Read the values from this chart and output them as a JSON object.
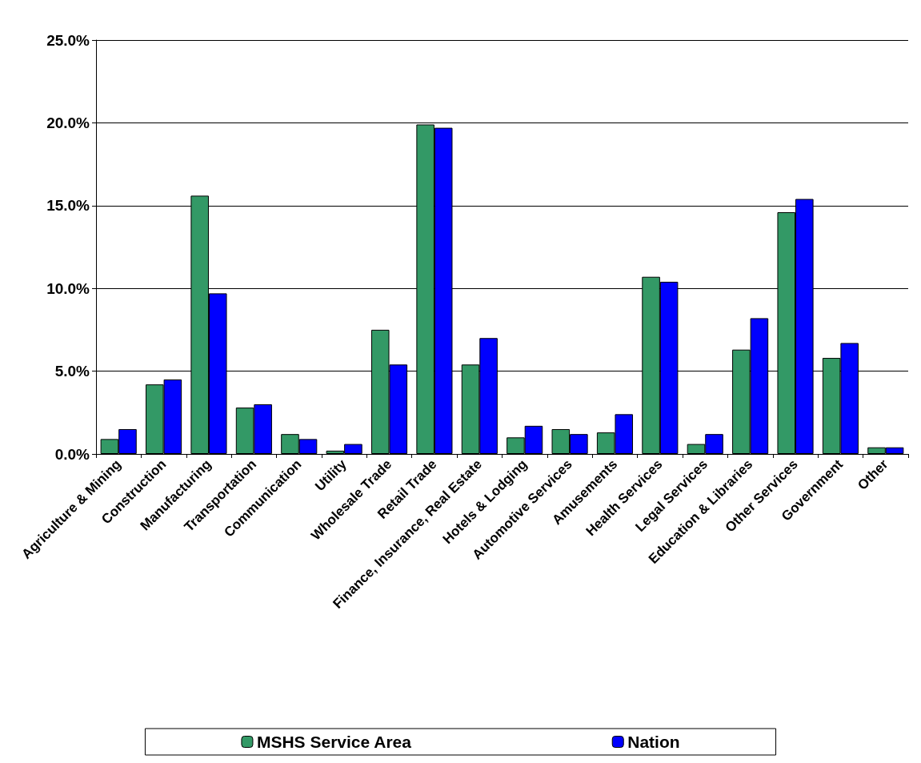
{
  "chart_data": {
    "type": "bar",
    "categories": [
      "Agriculture & Mining",
      "Construction",
      "Manufacturing",
      "Transportation",
      "Communication",
      "Utility",
      "Wholesale Trade",
      "Retail Trade",
      "Finance, Insurance, Real Estate",
      "Hotels & Lodging",
      "Automotive Services",
      "Amusements",
      "Health Services",
      "Legal Services",
      "Education & Libraries",
      "Other Services",
      "Government",
      "Other"
    ],
    "series": [
      {
        "name": "MSHS Service Area",
        "color": "#339966",
        "values": [
          0.9,
          4.2,
          15.6,
          2.8,
          1.2,
          0.2,
          7.5,
          19.9,
          5.4,
          1.0,
          1.5,
          1.3,
          10.7,
          0.6,
          6.3,
          14.6,
          5.8,
          0.4
        ]
      },
      {
        "name": "Nation",
        "color": "#0000ff",
        "values": [
          1.5,
          4.5,
          9.7,
          3.0,
          0.9,
          0.6,
          5.4,
          19.7,
          7.0,
          1.7,
          1.2,
          2.4,
          10.4,
          1.2,
          8.2,
          15.4,
          6.7,
          0.4
        ]
      }
    ],
    "ylim": [
      0,
      25
    ],
    "yticks": [
      {
        "value": 0,
        "label": "0.0%"
      },
      {
        "value": 5,
        "label": "5.0%"
      },
      {
        "value": 10,
        "label": "10.0%"
      },
      {
        "value": 15,
        "label": "15.0%"
      },
      {
        "value": 20,
        "label": "20.0%"
      },
      {
        "value": 25,
        "label": "25.0%"
      }
    ],
    "grid": "y",
    "legend": "bottom"
  }
}
